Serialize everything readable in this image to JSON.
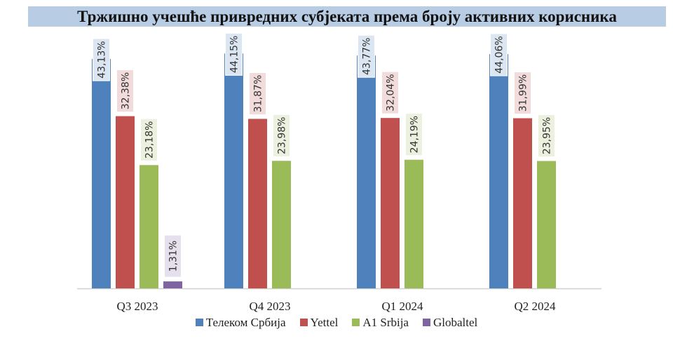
{
  "chart_data": {
    "type": "bar",
    "title": "Тржишно учешће привредних субјеката према броју активних корисника",
    "categories": [
      "Q3 2023",
      "Q4 2023",
      "Q1 2024",
      "Q2 2024"
    ],
    "series": [
      {
        "name": "Телеком Србија",
        "color": "#4f81bd",
        "label_bg": "#dce6f2",
        "values": [
          43.13,
          44.15,
          43.77,
          44.06
        ],
        "labels": [
          "43,13%",
          "44,15%",
          "43,77%",
          "44,06%"
        ]
      },
      {
        "name": "Yettel",
        "color": "#c0504d",
        "label_bg": "#f2dcdb",
        "values": [
          32.38,
          31.87,
          32.04,
          31.99
        ],
        "labels": [
          "32,38%",
          "31,87%",
          "32,04%",
          "31,99%"
        ]
      },
      {
        "name": "A1 Srbija",
        "color": "#9bbb59",
        "label_bg": "#ebf1de",
        "values": [
          23.18,
          23.98,
          24.19,
          23.95
        ],
        "labels": [
          "23,18%",
          "23,98%",
          "24,19%",
          "23,95%"
        ]
      },
      {
        "name": "Globaltel",
        "color": "#8064a2",
        "label_bg": "#e5e0ec",
        "values": [
          1.31,
          null,
          null,
          null
        ],
        "labels": [
          "1,31%",
          null,
          null,
          null
        ]
      }
    ],
    "xlabel": "",
    "ylabel": "",
    "ylim": [
      0,
      45
    ],
    "grid": false,
    "legend": "bottom"
  }
}
